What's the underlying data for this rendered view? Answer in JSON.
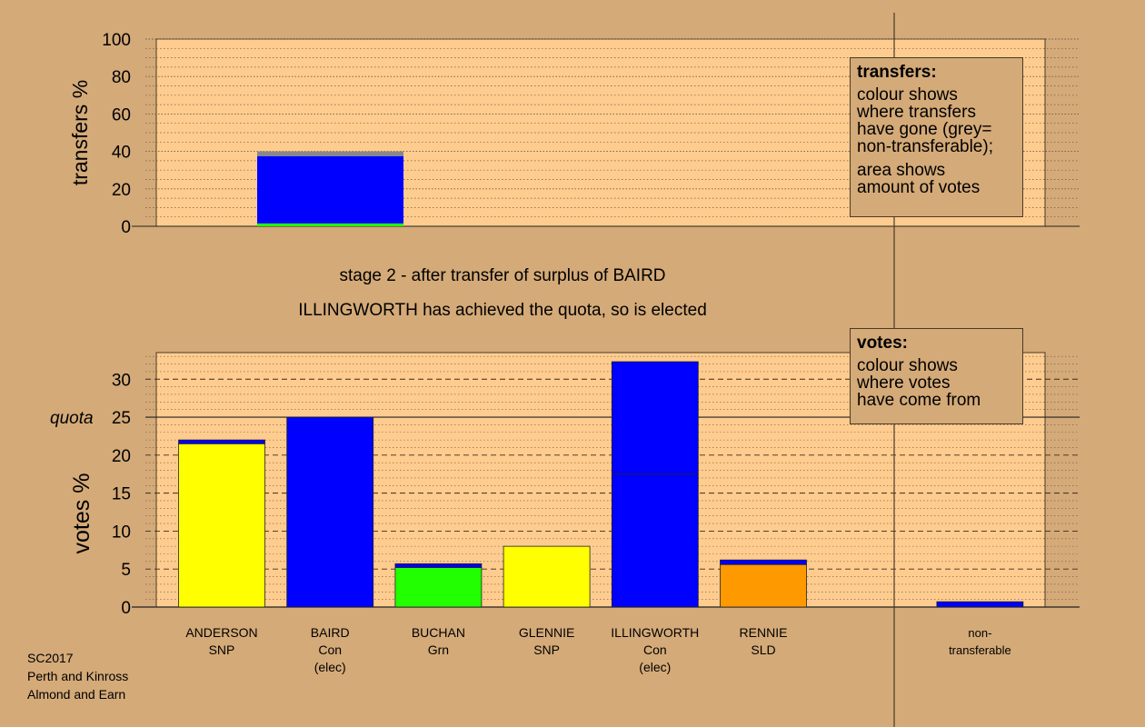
{
  "chart_data": [
    {
      "type": "bar",
      "stacked": true,
      "ylabel": "transfers %",
      "ylim": [
        0,
        100
      ],
      "yticks": [
        0,
        20,
        40,
        60,
        80,
        100
      ],
      "grid": "dotted",
      "bars": [
        {
          "candidate": "BAIRD",
          "segments": [
            {
              "color": "#22ff00",
              "value": 1.5
            },
            {
              "color": "#0000ff",
              "value": 36
            },
            {
              "color": "#888888",
              "value": 2.5
            }
          ]
        }
      ]
    },
    {
      "type": "bar",
      "stacked": true,
      "ylabel": "votes %",
      "ylim": [
        0,
        33.5
      ],
      "yticks": [
        0,
        5,
        10,
        15,
        20,
        25,
        30
      ],
      "quota_label": "quota",
      "quota": 25,
      "grid": "dotted",
      "categories": [
        {
          "name": "ANDERSON",
          "party": "SNP",
          "status": ""
        },
        {
          "name": "BAIRD",
          "party": "Con",
          "status": "(elec)"
        },
        {
          "name": "BUCHAN",
          "party": "Grn",
          "status": ""
        },
        {
          "name": "GLENNIE",
          "party": "SNP",
          "status": ""
        },
        {
          "name": "ILLINGWORTH",
          "party": "Con",
          "status": "(elec)"
        },
        {
          "name": "RENNIE",
          "party": "SLD",
          "status": ""
        },
        {
          "name": "",
          "party": "",
          "status": ""
        },
        {
          "name": "non-",
          "party": "transferable",
          "status": ""
        }
      ],
      "bars": [
        {
          "segments": [
            {
              "color": "#ffff00",
              "value": 21.5
            },
            {
              "color": "#0000ff",
              "value": 0.5
            }
          ]
        },
        {
          "segments": [
            {
              "color": "#0000ff",
              "value": 25
            }
          ]
        },
        {
          "segments": [
            {
              "color": "#22ff00",
              "value": 5.2
            },
            {
              "color": "#0000ff",
              "value": 0.5
            }
          ]
        },
        {
          "segments": [
            {
              "color": "#ffff00",
              "value": 8
            }
          ]
        },
        {
          "segments": [
            {
              "color": "#0000ff",
              "value": 17.5
            },
            {
              "color": "#0000ff",
              "value": 14.8
            }
          ]
        },
        {
          "segments": [
            {
              "color": "#ff9900",
              "value": 5.6
            },
            {
              "color": "#0000ff",
              "value": 0.6
            }
          ]
        },
        {
          "segments": []
        },
        {
          "segments": [
            {
              "color": "#0000ff",
              "value": 0.7
            }
          ]
        }
      ]
    }
  ],
  "stage": {
    "line1": "stage 2 - after transfer of surplus of BAIRD",
    "line2": "ILLINGWORTH has achieved the quota, so is elected"
  },
  "transfers_box": {
    "title": "transfers:",
    "lines1": [
      "colour shows",
      "where transfers",
      "have gone (grey=",
      "non-transferable);"
    ],
    "lines2": [
      "area shows",
      "amount of votes"
    ]
  },
  "votes_box": {
    "title": "votes:",
    "lines": [
      "colour shows",
      "where votes",
      "have come from"
    ]
  },
  "footer": {
    "line1": "SC2017",
    "line2": "Perth and Kinross",
    "line3": "Almond and Earn"
  },
  "colors": {
    "background": "#d4aa78",
    "plot": "#ffcc8f",
    "snp": "#ffff00",
    "con": "#0000ff",
    "grn": "#22ff00",
    "sld": "#ff9900",
    "nontransferable": "#888888"
  }
}
